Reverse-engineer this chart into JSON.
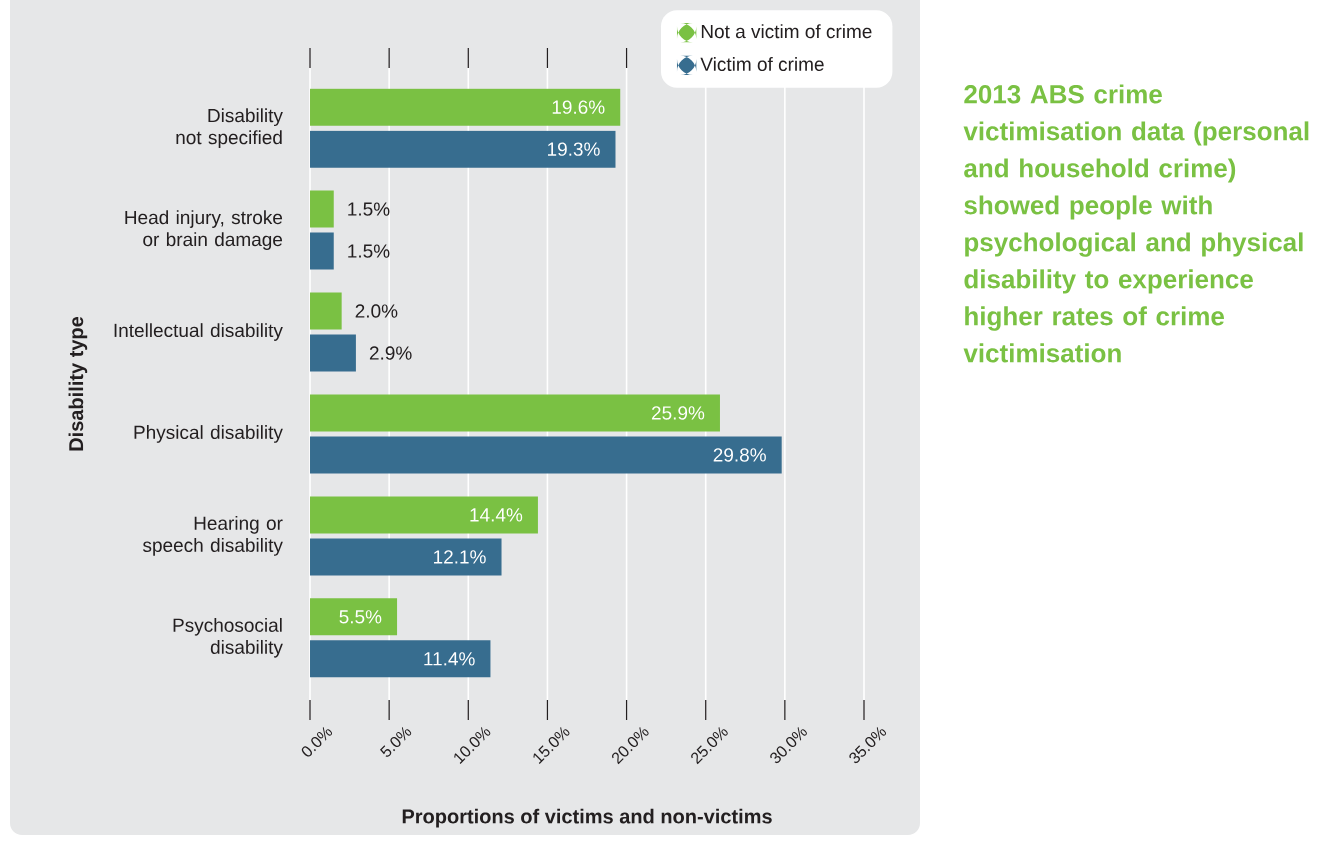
{
  "chart_data": {
    "type": "bar",
    "orientation": "horizontal",
    "title": "2013 ABS crime victimisation data (personal and household crime) showed people with psychological and physical disability to experience higher rates of crime victimisation",
    "xlabel": "Proportions of victims and non-victims",
    "ylabel": "Disability type",
    "categories": [
      "Disability not specified",
      "Head injury, stroke or brain damage",
      "Intellectual disability",
      "Physical disability",
      "Hearing or speech disability",
      "Psychosocial disability"
    ],
    "series": [
      {
        "name": "Not a victim of crime",
        "color": "#7ac143",
        "values": [
          19.6,
          1.5,
          2.0,
          25.9,
          14.4,
          5.5
        ],
        "value_labels": [
          "19.6%",
          "1.5%",
          "2.0%",
          "25.9%",
          "14.4%",
          "5.5%"
        ]
      },
      {
        "name": "Victim of crime",
        "color": "#376d8f",
        "values": [
          19.3,
          1.5,
          2.9,
          29.8,
          12.1,
          11.4
        ],
        "value_labels": [
          "19.3%",
          "1.5%",
          "2.9%",
          "29.8%",
          "12.1%",
          "11.4%"
        ]
      }
    ],
    "xlim": [
      0,
      35
    ],
    "xticks": [
      {
        "value": 0,
        "label": "0.0%"
      },
      {
        "value": 5,
        "label": "5.0%"
      },
      {
        "value": 10,
        "label": "10.0%"
      },
      {
        "value": 15,
        "label": "15.0%"
      },
      {
        "value": 20,
        "label": "20.0%"
      },
      {
        "value": 25,
        "label": "25.0%"
      },
      {
        "value": 30,
        "label": "30.0%"
      },
      {
        "value": 35,
        "label": "35.0%"
      }
    ],
    "grid": "x",
    "legend": "top right"
  }
}
